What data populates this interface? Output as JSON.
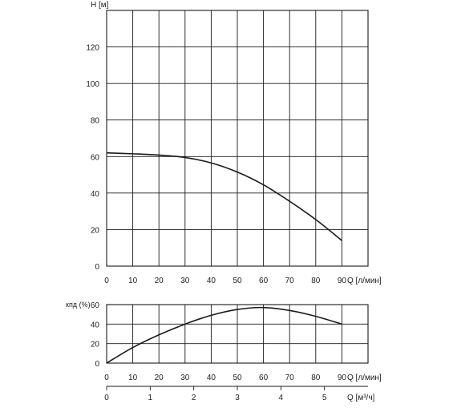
{
  "chart_data": [
    {
      "type": "line",
      "title": "",
      "ylabel": "H [м]",
      "xlabel": "Q [л/мин]",
      "xlim": [
        0,
        100
      ],
      "ylim": [
        0,
        140
      ],
      "x_ticks": [
        0,
        10,
        20,
        30,
        40,
        50,
        60,
        70,
        80,
        90
      ],
      "y_ticks": [
        0,
        20,
        40,
        60,
        80,
        100,
        120
      ],
      "grid": true,
      "series": [
        {
          "x": [
            0,
            10,
            20,
            30,
            40,
            50,
            60,
            70,
            80,
            90
          ],
          "y": [
            62,
            61.5,
            60.8,
            59.5,
            56.5,
            51.5,
            44.5,
            35.5,
            25.5,
            14
          ]
        }
      ]
    },
    {
      "type": "line",
      "title": "",
      "ylabel": "кпд (%)",
      "xlabel": "Q [л/мин]",
      "xlim": [
        0,
        100
      ],
      "ylim": [
        0,
        60
      ],
      "x_ticks": [
        0,
        10,
        20,
        30,
        40,
        50,
        60,
        70,
        80,
        90
      ],
      "y_ticks": [
        0,
        20,
        40,
        60
      ],
      "grid": true,
      "series": [
        {
          "x": [
            0,
            10,
            20,
            30,
            40,
            50,
            60,
            70,
            80,
            90
          ],
          "y": [
            0,
            16,
            29,
            40,
            49,
            55,
            57,
            54,
            48,
            40
          ]
        }
      ]
    },
    {
      "type": "axis",
      "xlabel": "Q [м³/ч]",
      "xlim": [
        0,
        6
      ],
      "x_ticks": [
        0,
        1,
        2,
        3,
        4,
        5
      ]
    }
  ]
}
